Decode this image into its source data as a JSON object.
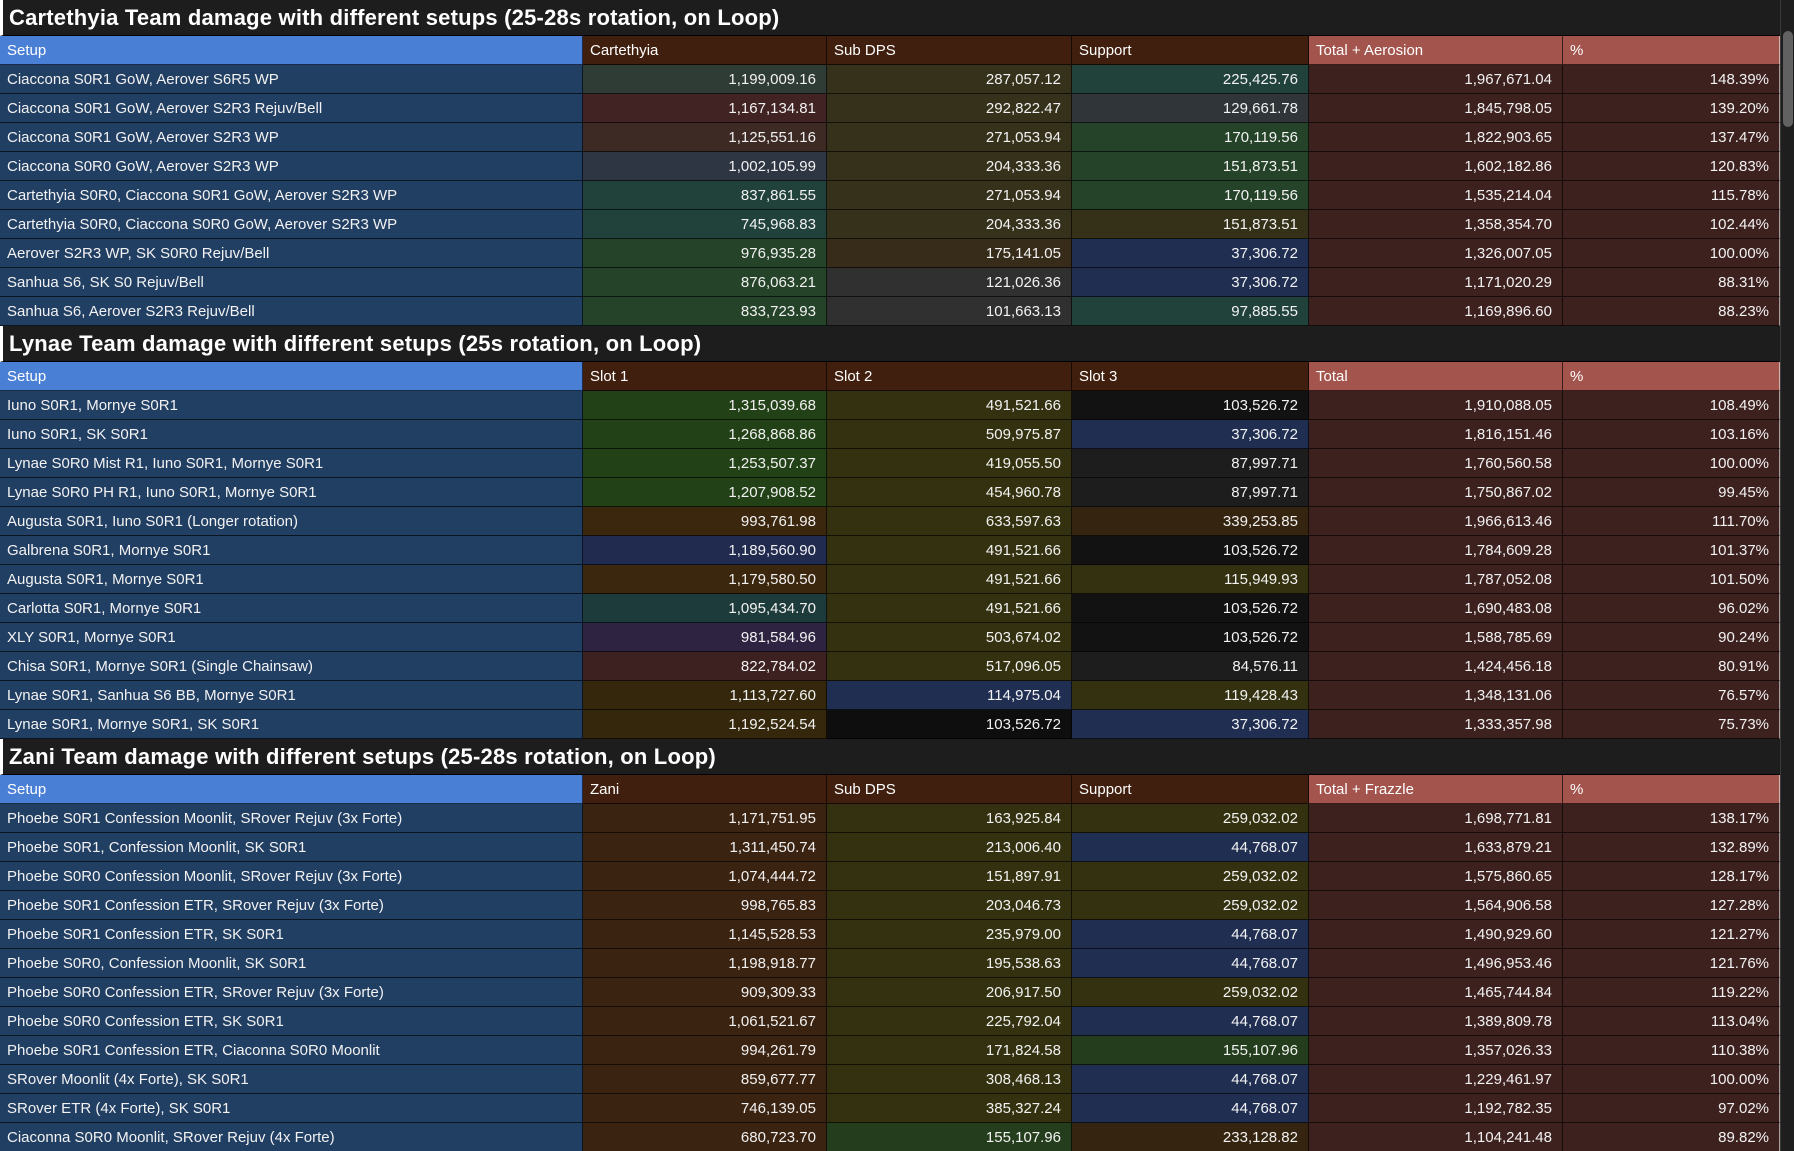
{
  "app": {
    "background": "#000000",
    "scrollbar_track": "#1e1e1e",
    "scrollbar_thumb": "#616161"
  },
  "palette": {
    "title_bar_bg": "#1d1d1d",
    "title_text": "#ffffff",
    "header_setup_bg": "#4a7fd6",
    "header_mid_bg": "#401f0e",
    "header_total_bg": "#a3544d",
    "header_text": "#ffffff",
    "setup_cell_bg": "#213e63",
    "total_cell_bg": "#3d211f",
    "pct_cell_bg": "#3d211f",
    "cell_text": "#f2f2f2"
  },
  "sections": [
    {
      "title": "Cartethyia Team damage with different setups (25-28s rotation, on Loop)",
      "headers": [
        "Setup",
        "Cartethyia",
        "Sub DPS",
        "Support",
        "Total + Aerosion",
        "%"
      ],
      "rows": [
        {
          "setup": "Ciaccona S0R1 GoW, Aerover S6R5 WP",
          "values": [
            "1,199,009.16",
            "287,057.12",
            "225,425.76",
            "1,967,671.04",
            "148.39%"
          ],
          "cell_colors": [
            "#2f3b35",
            "#36311b",
            "#21413b"
          ]
        },
        {
          "setup": "Ciaccona S0R1 GoW, Aerover S2R3 Rejuv/Bell",
          "values": [
            "1,167,134.81",
            "292,822.47",
            "129,661.78",
            "1,845,798.05",
            "139.20%"
          ],
          "cell_colors": [
            "#412323",
            "#36311b",
            "#2f3538"
          ]
        },
        {
          "setup": "Ciaccona S0R1 GoW, Aerover S2R3 WP",
          "values": [
            "1,125,551.16",
            "271,053.94",
            "170,119.56",
            "1,822,903.65",
            "137.47%"
          ],
          "cell_colors": [
            "#3d2a24",
            "#36311b",
            "#254329"
          ]
        },
        {
          "setup": "Ciaccona S0R0 GoW, Aerover S2R3 WP",
          "values": [
            "1,002,105.99",
            "204,333.36",
            "151,873.51",
            "1,602,182.86",
            "120.83%"
          ],
          "cell_colors": [
            "#2e3643",
            "#36311b",
            "#254329"
          ]
        },
        {
          "setup": "Cartethyia S0R0, Ciaccona S0R1 GoW, Aerover S2R3 WP",
          "values": [
            "837,861.55",
            "271,053.94",
            "170,119.56",
            "1,535,214.04",
            "115.78%"
          ],
          "cell_colors": [
            "#21413b",
            "#36311b",
            "#254329"
          ]
        },
        {
          "setup": "Cartethyia S0R0, Ciaccona S0R0 GoW, Aerover S2R3 WP",
          "values": [
            "745,968.83",
            "204,333.36",
            "151,873.51",
            "1,358,354.70",
            "102.44%"
          ],
          "cell_colors": [
            "#21413b",
            "#36311b",
            "#343118"
          ]
        },
        {
          "setup": "Aerover S2R3 WP, SK S0R0 Rejuv/Bell",
          "values": [
            "976,935.28",
            "175,141.05",
            "37,306.72",
            "1,326,007.05",
            "100.00%"
          ],
          "cell_colors": [
            "#254329",
            "#372b19",
            "#202e52"
          ]
        },
        {
          "setup": "Sanhua S6, SK S0 Rejuv/Bell",
          "values": [
            "876,063.21",
            "121,026.36",
            "37,306.72",
            "1,171,020.29",
            "88.31%"
          ],
          "cell_colors": [
            "#254329",
            "#303030",
            "#202e52"
          ]
        },
        {
          "setup": "Sanhua S6, Aerover S2R3 Rejuv/Bell",
          "values": [
            "833,723.93",
            "101,663.13",
            "97,885.55",
            "1,169,896.60",
            "88.23%"
          ],
          "cell_colors": [
            "#254329",
            "#303030",
            "#21413b"
          ]
        }
      ]
    },
    {
      "title": "Lynae Team damage with different setups (25s rotation, on Loop)",
      "headers": [
        "Setup",
        "Slot 1",
        "Slot 2",
        "Slot 3",
        "Total",
        "%"
      ],
      "rows": [
        {
          "setup": "Iuno S0R1, Mornye S0R1",
          "values": [
            "1,315,039.68",
            "491,521.66",
            "103,526.72",
            "1,910,088.05",
            "108.49%"
          ],
          "cell_colors": [
            "#234117",
            "#33310f",
            "#121212"
          ]
        },
        {
          "setup": "Iuno S0R1, SK S0R1",
          "values": [
            "1,268,868.86",
            "509,975.87",
            "37,306.72",
            "1,816,151.46",
            "103.16%"
          ],
          "cell_colors": [
            "#234117",
            "#33310f",
            "#202e52"
          ]
        },
        {
          "setup": "Lynae S0R0 Mist R1, Iuno S0R1, Mornye S0R1",
          "values": [
            "1,253,507.37",
            "419,055.50",
            "87,997.71",
            "1,760,560.58",
            "100.00%"
          ],
          "cell_colors": [
            "#234117",
            "#33310f",
            "#1d1d1d"
          ]
        },
        {
          "setup": "Lynae S0R0 PH R1, Iuno S0R1, Mornye S0R1",
          "values": [
            "1,207,908.52",
            "454,960.78",
            "87,997.71",
            "1,750,867.02",
            "99.45%"
          ],
          "cell_colors": [
            "#234117",
            "#33310f",
            "#1d1d1d"
          ]
        },
        {
          "setup": "Augusta S0R1, Iuno S0R1 (Longer rotation)",
          "values": [
            "993,761.98",
            "633,597.63",
            "339,253.85",
            "1,966,613.46",
            "111.70%"
          ],
          "cell_colors": [
            "#3b260e",
            "#33310f",
            "#35240f"
          ]
        },
        {
          "setup": "Galbrena S0R1, Mornye S0R1",
          "values": [
            "1,189,560.90",
            "491,521.66",
            "103,526.72",
            "1,784,609.28",
            "101.37%"
          ],
          "cell_colors": [
            "#212b4f",
            "#33310f",
            "#121212"
          ]
        },
        {
          "setup": "Augusta S0R1, Mornye S0R1",
          "values": [
            "1,179,580.50",
            "491,521.66",
            "115,949.93",
            "1,787,052.08",
            "101.50%"
          ],
          "cell_colors": [
            "#3b260e",
            "#33310f",
            "#33310f"
          ]
        },
        {
          "setup": "Carlotta S0R1, Mornye S0R1",
          "values": [
            "1,095,434.70",
            "491,521.66",
            "103,526.72",
            "1,690,483.08",
            "96.02%"
          ],
          "cell_colors": [
            "#1e3b3b",
            "#33310f",
            "#121212"
          ]
        },
        {
          "setup": "XLY S0R1, Mornye S0R1",
          "values": [
            "981,584.96",
            "503,674.02",
            "103,526.72",
            "1,588,785.69",
            "90.24%"
          ],
          "cell_colors": [
            "#2f2342",
            "#33310f",
            "#121212"
          ]
        },
        {
          "setup": "Chisa S0R1, Mornye S0R1 (Single Chainsaw)",
          "values": [
            "822,784.02",
            "517,096.05",
            "84,576.11",
            "1,424,456.18",
            "80.91%"
          ],
          "cell_colors": [
            "#3d2121",
            "#33310f",
            "#1d1d1d"
          ]
        },
        {
          "setup": "Lynae S0R1, Sanhua S6 BB, Mornye S0R1",
          "values": [
            "1,113,727.60",
            "114,975.04",
            "119,428.43",
            "1,348,131.06",
            "76.57%"
          ],
          "cell_colors": [
            "#34270b",
            "#202e52",
            "#33310f"
          ]
        },
        {
          "setup": "Lynae S0R1, Mornye S0R1, SK S0R1",
          "values": [
            "1,192,524.54",
            "103,526.72",
            "37,306.72",
            "1,333,357.98",
            "75.73%"
          ],
          "cell_colors": [
            "#34270b",
            "#0e0e0e",
            "#202e52"
          ]
        }
      ]
    },
    {
      "title": "Zani Team damage with different setups (25-28s rotation, on Loop)",
      "headers": [
        "Setup",
        "Zani",
        "Sub DPS",
        "Support",
        "Total + Frazzle",
        "%"
      ],
      "rows": [
        {
          "setup": "Phoebe S0R1 Confession Moonlit, SRover Rejuv (3x Forte)",
          "values": [
            "1,171,751.95",
            "163,925.84",
            "259,032.02",
            "1,698,771.81",
            "138.17%"
          ],
          "cell_colors": [
            "#3b2312",
            "#33310f",
            "#33310f"
          ]
        },
        {
          "setup": "Phoebe S0R1, Confession Moonlit, SK S0R1",
          "values": [
            "1,311,450.74",
            "213,006.40",
            "44,768.07",
            "1,633,879.21",
            "132.89%"
          ],
          "cell_colors": [
            "#3b2312",
            "#33310f",
            "#202e52"
          ]
        },
        {
          "setup": "Phoebe S0R0 Confession Moonlit, SRover Rejuv (3x Forte)",
          "values": [
            "1,074,444.72",
            "151,897.91",
            "259,032.02",
            "1,575,860.65",
            "128.17%"
          ],
          "cell_colors": [
            "#3b2312",
            "#33310f",
            "#33310f"
          ]
        },
        {
          "setup": "Phoebe S0R1 Confession ETR, SRover Rejuv (3x Forte)",
          "values": [
            "998,765.83",
            "203,046.73",
            "259,032.02",
            "1,564,906.58",
            "127.28%"
          ],
          "cell_colors": [
            "#3b2312",
            "#33310f",
            "#33310f"
          ]
        },
        {
          "setup": "Phoebe S0R1 Confession ETR, SK S0R1",
          "values": [
            "1,145,528.53",
            "235,979.00",
            "44,768.07",
            "1,490,929.60",
            "121.27%"
          ],
          "cell_colors": [
            "#3b2312",
            "#33310f",
            "#202e52"
          ]
        },
        {
          "setup": "Phoebe S0R0, Confession Moonlit, SK S0R1",
          "values": [
            "1,198,918.77",
            "195,538.63",
            "44,768.07",
            "1,496,953.46",
            "121.76%"
          ],
          "cell_colors": [
            "#3b2312",
            "#33310f",
            "#202e52"
          ]
        },
        {
          "setup": "Phoebe S0R0 Confession ETR, SRover Rejuv (3x Forte)",
          "values": [
            "909,309.33",
            "206,917.50",
            "259,032.02",
            "1,465,744.84",
            "119.22%"
          ],
          "cell_colors": [
            "#3b2312",
            "#33310f",
            "#33310f"
          ]
        },
        {
          "setup": "Phoebe S0R0 Confession ETR, SK S0R1",
          "values": [
            "1,061,521.67",
            "225,792.04",
            "44,768.07",
            "1,389,809.78",
            "113.04%"
          ],
          "cell_colors": [
            "#3b2312",
            "#33310f",
            "#202e52"
          ]
        },
        {
          "setup": "Phoebe S0R1 Confession ETR, Ciaconna S0R0 Moonlit",
          "values": [
            "994,261.79",
            "171,824.58",
            "155,107.96",
            "1,357,026.33",
            "110.38%"
          ],
          "cell_colors": [
            "#3b2312",
            "#33310f",
            "#243e1d"
          ]
        },
        {
          "setup": "SRover Moonlit (4x Forte), SK S0R1",
          "values": [
            "859,677.77",
            "308,468.13",
            "44,768.07",
            "1,229,461.97",
            "100.00%"
          ],
          "cell_colors": [
            "#3b2312",
            "#33310f",
            "#202e52"
          ]
        },
        {
          "setup": "SRover ETR (4x Forte), SK S0R1",
          "values": [
            "746,139.05",
            "385,327.24",
            "44,768.07",
            "1,192,782.35",
            "97.02%"
          ],
          "cell_colors": [
            "#3b2312",
            "#33310f",
            "#202e52"
          ]
        },
        {
          "setup": "Ciaconna S0R0 Moonlit, SRover Rejuv (4x Forte)",
          "values": [
            "680,723.70",
            "155,107.96",
            "233,128.82",
            "1,104,241.48",
            "89.82%"
          ],
          "cell_colors": [
            "#3b2312",
            "#243e1d",
            "#35240f"
          ]
        }
      ]
    }
  ]
}
